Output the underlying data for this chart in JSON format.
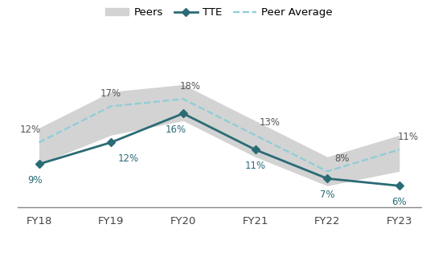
{
  "x_labels": [
    "FY18",
    "FY19",
    "FY20",
    "FY21",
    "FY22",
    "FY23"
  ],
  "x": [
    0,
    1,
    2,
    3,
    4,
    5
  ],
  "tte_values": [
    9,
    12,
    16,
    11,
    7,
    6
  ],
  "peer_avg_values": [
    12,
    17,
    18,
    13,
    8,
    11
  ],
  "peers_upper": [
    14,
    19,
    20,
    15,
    10,
    13
  ],
  "peers_lower": [
    9,
    13,
    15,
    10,
    6,
    8
  ],
  "tte_color": "#2a6b75",
  "peer_avg_color": "#8dcdd8",
  "peers_fill_color": "#d3d3d3",
  "background_color": "#ffffff",
  "legend_fontsize": 9.5,
  "annotation_fontsize": 8.5,
  "tick_fontsize": 9.5,
  "ylim": [
    3,
    24
  ],
  "title": ""
}
